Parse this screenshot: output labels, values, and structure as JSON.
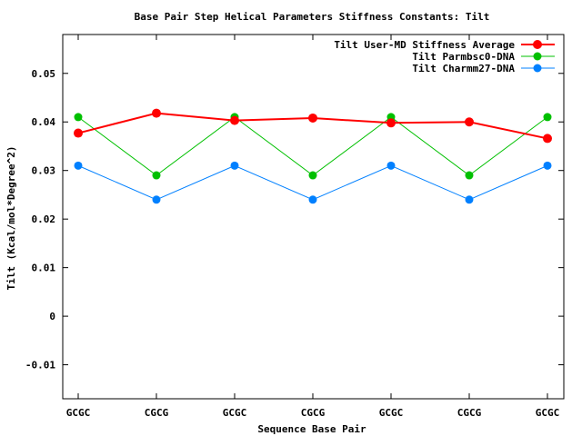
{
  "chart_data": {
    "type": "line",
    "title": "Base Pair Step Helical Parameters Stiffness Constants: Tilt",
    "xlabel": "Sequence Base Pair",
    "ylabel": "Tilt (Kcal/mol*Degree^2)",
    "categories": [
      "GCGC",
      "CGCG",
      "GCGC",
      "CGCG",
      "GCGC",
      "CGCG",
      "GCGC"
    ],
    "ylim": [
      -0.017,
      0.058
    ],
    "yticks": [
      -0.01,
      0,
      0.01,
      0.02,
      0.03,
      0.04,
      0.05
    ],
    "ytick_labels": [
      "-0.01",
      "0",
      "0.01",
      "0.02",
      "0.03",
      "0.04",
      "0.05"
    ],
    "grid": false,
    "legend_position": "top-right",
    "series": [
      {
        "name": "Tilt User-MD Stiffness Average",
        "color": "#ff0000",
        "values": [
          0.0377,
          0.0418,
          0.0403,
          0.0408,
          0.0398,
          0.04,
          0.0366
        ]
      },
      {
        "name": "Tilt Parmbsc0-DNA",
        "color": "#00c000",
        "values": [
          0.041,
          0.029,
          0.041,
          0.029,
          0.041,
          0.029,
          0.041
        ]
      },
      {
        "name": "Tilt Charmm27-DNA",
        "color": "#0080ff",
        "values": [
          0.031,
          0.024,
          0.031,
          0.024,
          0.031,
          0.024,
          0.031
        ]
      }
    ]
  }
}
